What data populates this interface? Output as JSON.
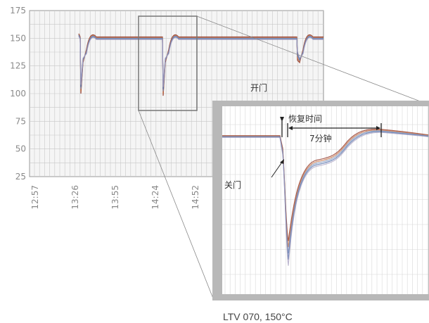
{
  "chart_data": {
    "type": "line",
    "title": "",
    "xlabel": "",
    "ylabel": "",
    "ylim": [
      25,
      175
    ],
    "yticks": [
      25,
      50,
      75,
      100,
      125,
      150,
      175
    ],
    "xtick_labels": [
      "12:57",
      "13:26",
      "13:55",
      "14:24",
      "14:52"
    ],
    "grid": true,
    "legend": "none",
    "series_colors": [
      "#8b2a1a",
      "#c46a3a",
      "#7a8fb8",
      "#4a6aa8",
      "#a8a0c0"
    ],
    "door_events": [
      {
        "open_time": "13:29",
        "trough": 100,
        "recovered": 150
      },
      {
        "open_time": "14:28",
        "trough": 98,
        "recovered": 150
      },
      {
        "open_time": "15:40",
        "trough": 130,
        "recovered": 150
      }
    ],
    "annotations": {
      "door_open": "开门",
      "recovery_time": "恢复时间",
      "recovery_duration": "7分钟",
      "door_closed": "关门"
    },
    "caption": "LTV 070, 150°C"
  }
}
